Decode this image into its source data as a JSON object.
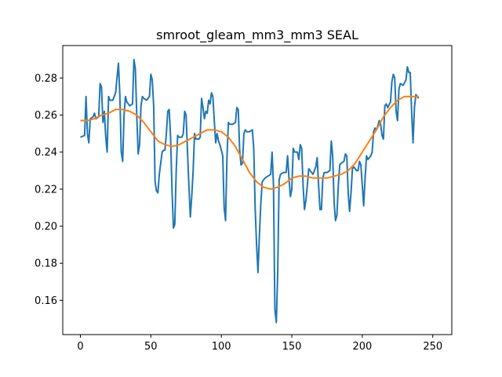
{
  "chart_data": {
    "type": "line",
    "title": "smroot_gleam_mm3_mm3 SEAL",
    "xlabel": "",
    "ylabel": "",
    "xlim": [
      -12.5,
      263.5
    ],
    "ylim": [
      0.1415,
      0.2975
    ],
    "x_ticks": [
      0,
      50,
      100,
      150,
      200,
      250
    ],
    "y_ticks": [
      0.16,
      0.18,
      0.2,
      0.22,
      0.24,
      0.26,
      0.28
    ],
    "y_tick_labels": [
      "0.16",
      "0.18",
      "0.20",
      "0.22",
      "0.24",
      "0.26",
      "0.28"
    ],
    "grid": false,
    "legend": "none",
    "series": [
      {
        "color": "#1f77b4",
        "points": [
          [
            0,
            0.248
          ],
          [
            3,
            0.249
          ],
          [
            4,
            0.27
          ],
          [
            5,
            0.25
          ],
          [
            6,
            0.245
          ],
          [
            7,
            0.258
          ],
          [
            9,
            0.259
          ],
          [
            10,
            0.261
          ],
          [
            11,
            0.258
          ],
          [
            13,
            0.259
          ],
          [
            14,
            0.277
          ],
          [
            15,
            0.275
          ],
          [
            16,
            0.256
          ],
          [
            17,
            0.262
          ],
          [
            18,
            0.248
          ],
          [
            19,
            0.24
          ],
          [
            20,
            0.27
          ],
          [
            21,
            0.268
          ],
          [
            23,
            0.268
          ],
          [
            25,
            0.272
          ],
          [
            26,
            0.28
          ],
          [
            27,
            0.288
          ],
          [
            28,
            0.271
          ],
          [
            29,
            0.24
          ],
          [
            30,
            0.235
          ],
          [
            31,
            0.26
          ],
          [
            32,
            0.27
          ],
          [
            33,
            0.267
          ],
          [
            35,
            0.265
          ],
          [
            37,
            0.266
          ],
          [
            38,
            0.29
          ],
          [
            39,
            0.285
          ],
          [
            40,
            0.26
          ],
          [
            41,
            0.239
          ],
          [
            42,
            0.244
          ],
          [
            43,
            0.265
          ],
          [
            44,
            0.27
          ],
          [
            45,
            0.269
          ],
          [
            47,
            0.268
          ],
          [
            49,
            0.27
          ],
          [
            50,
            0.282
          ],
          [
            51,
            0.279
          ],
          [
            52,
            0.265
          ],
          [
            53,
            0.224
          ],
          [
            54,
            0.219
          ],
          [
            55,
            0.218
          ],
          [
            56,
            0.228
          ],
          [
            57,
            0.234
          ],
          [
            58,
            0.24
          ],
          [
            59,
            0.241
          ],
          [
            60,
            0.241
          ],
          [
            61,
            0.25
          ],
          [
            62,
            0.262
          ],
          [
            63,
            0.263
          ],
          [
            64,
            0.248
          ],
          [
            65,
            0.22
          ],
          [
            66,
            0.199
          ],
          [
            67,
            0.201
          ],
          [
            68,
            0.23
          ],
          [
            69,
            0.249
          ],
          [
            70,
            0.248
          ],
          [
            72,
            0.248
          ],
          [
            73,
            0.25
          ],
          [
            74,
            0.262
          ],
          [
            75,
            0.26
          ],
          [
            76,
            0.24
          ],
          [
            77,
            0.222
          ],
          [
            78,
            0.205
          ],
          [
            79,
            0.216
          ],
          [
            80,
            0.23
          ],
          [
            81,
            0.25
          ],
          [
            82,
            0.247
          ],
          [
            84,
            0.247
          ],
          [
            85,
            0.248
          ],
          [
            86,
            0.269
          ],
          [
            87,
            0.264
          ],
          [
            88,
            0.258
          ],
          [
            89,
            0.262
          ],
          [
            90,
            0.261
          ],
          [
            91,
            0.268
          ],
          [
            92,
            0.266
          ],
          [
            93,
            0.272
          ],
          [
            94,
            0.27
          ],
          [
            95,
            0.257
          ],
          [
            96,
            0.245
          ],
          [
            97,
            0.25
          ],
          [
            98,
            0.246
          ],
          [
            99,
            0.244
          ],
          [
            100,
            0.241
          ],
          [
            101,
            0.238
          ],
          [
            102,
            0.21
          ],
          [
            103,
            0.203
          ],
          [
            104,
            0.237
          ],
          [
            105,
            0.256
          ],
          [
            106,
            0.255
          ],
          [
            108,
            0.255
          ],
          [
            110,
            0.256
          ],
          [
            111,
            0.264
          ],
          [
            112,
            0.263
          ],
          [
            113,
            0.241
          ],
          [
            114,
            0.233
          ],
          [
            115,
            0.234
          ],
          [
            116,
            0.25
          ],
          [
            117,
            0.252
          ],
          [
            118,
            0.251
          ],
          [
            120,
            0.251
          ],
          [
            122,
            0.252
          ],
          [
            123,
            0.242
          ],
          [
            124,
            0.21
          ],
          [
            125,
            0.19
          ],
          [
            126,
            0.175
          ],
          [
            127,
            0.195
          ],
          [
            128,
            0.212
          ],
          [
            129,
            0.224
          ],
          [
            131,
            0.226
          ],
          [
            133,
            0.227
          ],
          [
            135,
            0.228
          ],
          [
            136,
            0.24
          ],
          [
            137,
            0.222
          ],
          [
            138,
            0.155
          ],
          [
            139,
            0.148
          ],
          [
            140,
            0.175
          ],
          [
            141,
            0.225
          ],
          [
            142,
            0.228
          ],
          [
            144,
            0.229
          ],
          [
            146,
            0.229
          ],
          [
            147,
            0.238
          ],
          [
            148,
            0.226
          ],
          [
            149,
            0.216
          ],
          [
            150,
            0.22
          ],
          [
            151,
            0.242
          ],
          [
            152,
            0.24
          ],
          [
            154,
            0.24
          ],
          [
            155,
            0.236
          ],
          [
            156,
            0.244
          ],
          [
            157,
            0.242
          ],
          [
            158,
            0.222
          ],
          [
            159,
            0.209
          ],
          [
            160,
            0.214
          ],
          [
            161,
            0.222
          ],
          [
            162,
            0.231
          ],
          [
            163,
            0.23
          ],
          [
            165,
            0.228
          ],
          [
            166,
            0.23
          ],
          [
            167,
            0.232
          ],
          [
            168,
            0.237
          ],
          [
            169,
            0.222
          ],
          [
            170,
            0.209
          ],
          [
            171,
            0.209
          ],
          [
            172,
            0.226
          ],
          [
            173,
            0.229
          ],
          [
            175,
            0.229
          ],
          [
            177,
            0.23
          ],
          [
            178,
            0.246
          ],
          [
            179,
            0.238
          ],
          [
            180,
            0.213
          ],
          [
            181,
            0.203
          ],
          [
            182,
            0.206
          ],
          [
            183,
            0.222
          ],
          [
            184,
            0.233
          ],
          [
            185,
            0.234
          ],
          [
            187,
            0.235
          ],
          [
            188,
            0.239
          ],
          [
            189,
            0.238
          ],
          [
            190,
            0.218
          ],
          [
            191,
            0.208
          ],
          [
            192,
            0.218
          ],
          [
            193,
            0.231
          ],
          [
            194,
            0.232
          ],
          [
            196,
            0.23
          ],
          [
            197,
            0.23
          ],
          [
            198,
            0.235
          ],
          [
            199,
            0.233
          ],
          [
            200,
            0.222
          ],
          [
            201,
            0.211
          ],
          [
            202,
            0.226
          ],
          [
            203,
            0.238
          ],
          [
            204,
            0.236
          ],
          [
            206,
            0.238
          ],
          [
            207,
            0.24
          ],
          [
            208,
            0.251
          ],
          [
            209,
            0.253
          ],
          [
            210,
            0.252
          ],
          [
            211,
            0.254
          ],
          [
            212,
            0.257
          ],
          [
            213,
            0.255
          ],
          [
            214,
            0.249
          ],
          [
            215,
            0.247
          ],
          [
            216,
            0.265
          ],
          [
            217,
            0.266
          ],
          [
            218,
            0.264
          ],
          [
            220,
            0.267
          ],
          [
            221,
            0.278
          ],
          [
            222,
            0.282
          ],
          [
            223,
            0.28
          ],
          [
            224,
            0.262
          ],
          [
            225,
            0.257
          ],
          [
            226,
            0.274
          ],
          [
            227,
            0.277
          ],
          [
            229,
            0.276
          ],
          [
            231,
            0.279
          ],
          [
            232,
            0.286
          ],
          [
            233,
            0.283
          ],
          [
            234,
            0.283
          ],
          [
            235,
            0.262
          ],
          [
            236,
            0.245
          ],
          [
            237,
            0.264
          ],
          [
            238,
            0.271
          ],
          [
            240,
            0.269
          ]
        ]
      },
      {
        "color": "#ff7f0e",
        "points": [
          [
            0,
            0.257
          ],
          [
            5,
            0.257
          ],
          [
            10,
            0.258
          ],
          [
            15,
            0.26
          ],
          [
            20,
            0.261
          ],
          [
            25,
            0.263
          ],
          [
            30,
            0.263
          ],
          [
            35,
            0.262
          ],
          [
            40,
            0.26
          ],
          [
            45,
            0.256
          ],
          [
            50,
            0.251
          ],
          [
            55,
            0.246
          ],
          [
            60,
            0.244
          ],
          [
            65,
            0.243
          ],
          [
            70,
            0.244
          ],
          [
            75,
            0.246
          ],
          [
            80,
            0.248
          ],
          [
            85,
            0.25
          ],
          [
            90,
            0.252
          ],
          [
            95,
            0.252
          ],
          [
            100,
            0.251
          ],
          [
            105,
            0.248
          ],
          [
            110,
            0.243
          ],
          [
            115,
            0.236
          ],
          [
            120,
            0.229
          ],
          [
            125,
            0.224
          ],
          [
            130,
            0.221
          ],
          [
            135,
            0.22
          ],
          [
            140,
            0.221
          ],
          [
            145,
            0.223
          ],
          [
            150,
            0.226
          ],
          [
            155,
            0.227
          ],
          [
            160,
            0.227
          ],
          [
            165,
            0.226
          ],
          [
            170,
            0.226
          ],
          [
            175,
            0.226
          ],
          [
            180,
            0.227
          ],
          [
            185,
            0.228
          ],
          [
            190,
            0.23
          ],
          [
            195,
            0.234
          ],
          [
            200,
            0.24
          ],
          [
            205,
            0.246
          ],
          [
            210,
            0.252
          ],
          [
            215,
            0.259
          ],
          [
            220,
            0.264
          ],
          [
            225,
            0.268
          ],
          [
            230,
            0.27
          ],
          [
            235,
            0.27
          ],
          [
            240,
            0.27
          ]
        ]
      }
    ]
  }
}
